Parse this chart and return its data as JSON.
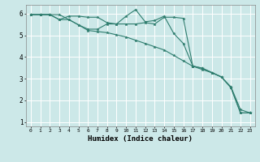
{
  "xlabel": "Humidex (Indice chaleur)",
  "bg_color": "#cce8e8",
  "grid_color": "#ffffff",
  "line_color": "#2e7d6e",
  "xlim": [
    -0.5,
    23.5
  ],
  "ylim": [
    0.8,
    6.4
  ],
  "yticks": [
    1,
    2,
    3,
    4,
    5,
    6
  ],
  "xticks": [
    0,
    1,
    2,
    3,
    4,
    5,
    6,
    7,
    8,
    9,
    10,
    11,
    12,
    13,
    14,
    15,
    16,
    17,
    18,
    19,
    20,
    21,
    22,
    23
  ],
  "line1_x": [
    0,
    1,
    2,
    3,
    4,
    5,
    6,
    7,
    8,
    9,
    10,
    11,
    12,
    13,
    14,
    15,
    16,
    17,
    18,
    19,
    20,
    21,
    22,
    23
  ],
  "line1_y": [
    5.95,
    5.95,
    5.95,
    5.95,
    5.72,
    5.48,
    5.28,
    5.28,
    5.52,
    5.52,
    5.88,
    6.18,
    5.62,
    5.68,
    5.88,
    5.08,
    4.62,
    3.58,
    3.48,
    3.28,
    3.08,
    2.58,
    1.42,
    1.42
  ],
  "line2_x": [
    0,
    1,
    2,
    3,
    4,
    5,
    6,
    7,
    8,
    9,
    10,
    11,
    12,
    13,
    14,
    15,
    16,
    17,
    18,
    19,
    20,
    21,
    22,
    23
  ],
  "line2_y": [
    5.95,
    5.95,
    5.95,
    5.72,
    5.72,
    5.48,
    5.22,
    5.17,
    5.12,
    5.02,
    4.92,
    4.77,
    4.62,
    4.47,
    4.32,
    4.07,
    3.82,
    3.57,
    3.42,
    3.27,
    3.07,
    2.62,
    1.57,
    1.42
  ],
  "line3_x": [
    0,
    1,
    2,
    3,
    4,
    5,
    6,
    7,
    8,
    9,
    10,
    11,
    12,
    13,
    14,
    15,
    16,
    17,
    18,
    19,
    20,
    21,
    22,
    23
  ],
  "line3_y": [
    5.95,
    5.95,
    5.95,
    5.72,
    5.88,
    5.88,
    5.83,
    5.83,
    5.58,
    5.52,
    5.52,
    5.52,
    5.58,
    5.52,
    5.83,
    5.83,
    5.78,
    3.58,
    3.48,
    3.28,
    3.08,
    2.58,
    1.42,
    1.42
  ]
}
